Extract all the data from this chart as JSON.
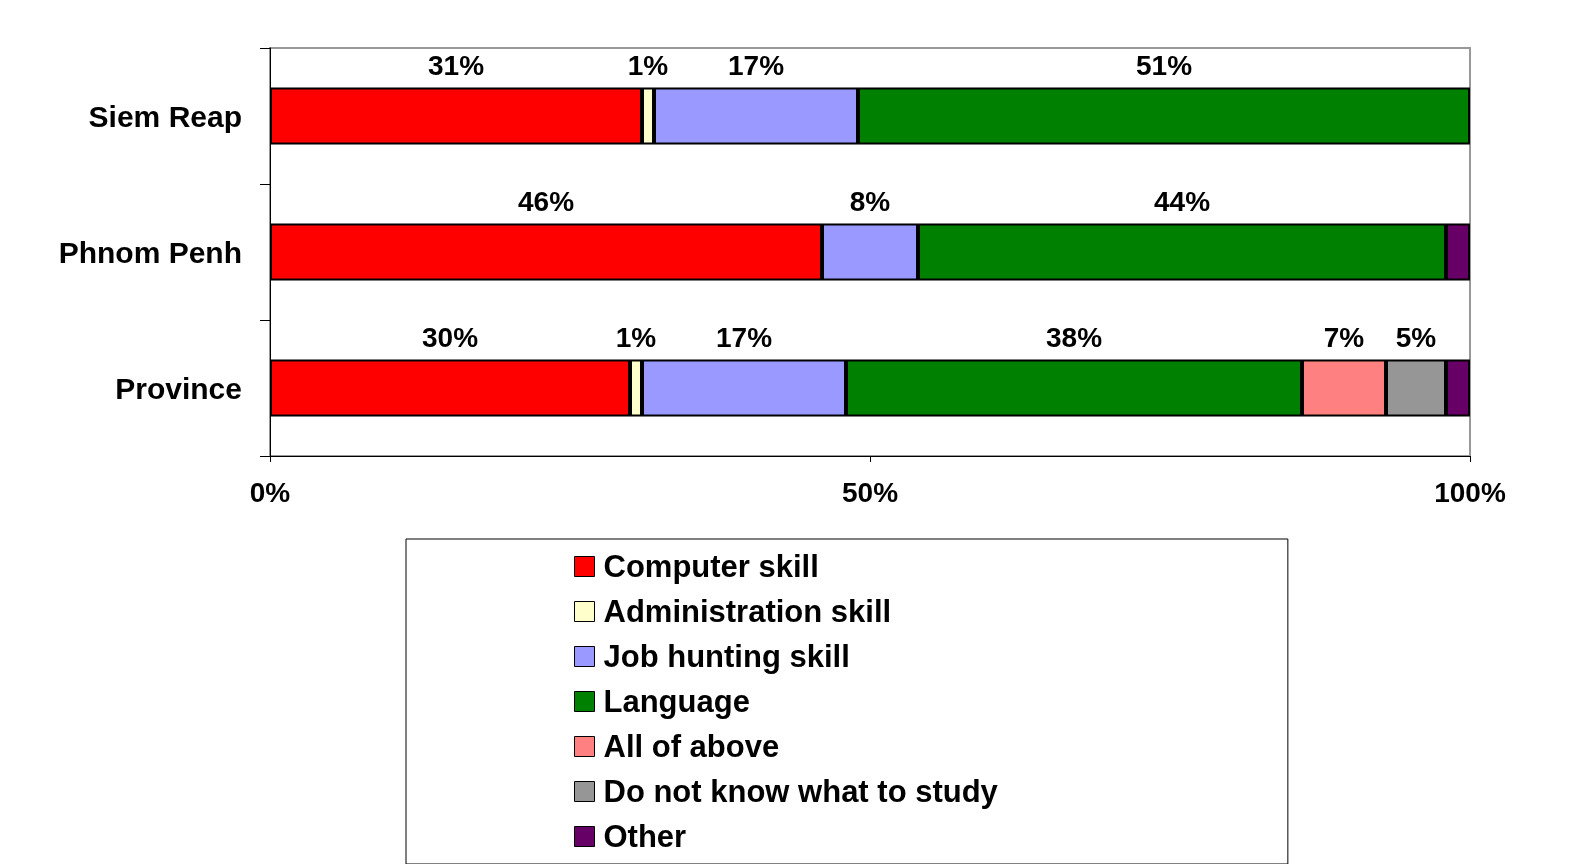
{
  "chart_data": {
    "type": "bar",
    "orientation": "horizontal",
    "stacked": true,
    "categories": [
      "Siem Reap",
      "Phnom Penh",
      "Province"
    ],
    "series": [
      {
        "name": "Computer skill",
        "color": "#ff0000",
        "values": [
          31,
          46,
          30
        ],
        "value_labels": [
          "31%",
          "46%",
          "30%"
        ]
      },
      {
        "name": "Administration skill",
        "color": "#ffffcc",
        "values": [
          1,
          null,
          1
        ],
        "value_labels": [
          "1%",
          null,
          "1%"
        ]
      },
      {
        "name": "Job hunting skill",
        "color": "#9999ff",
        "values": [
          17,
          8,
          17
        ],
        "value_labels": [
          "17%",
          "8%",
          "17%"
        ]
      },
      {
        "name": "Language",
        "color": "#008000",
        "values": [
          51,
          44,
          38
        ],
        "value_labels": [
          "51%",
          "44%",
          "38%"
        ]
      },
      {
        "name": "All of above",
        "color": "#ff8080",
        "values": [
          null,
          null,
          7
        ],
        "value_labels": [
          null,
          null,
          "7%"
        ]
      },
      {
        "name": "Do not know what to study",
        "color": "#969696",
        "values": [
          null,
          null,
          5
        ],
        "value_labels": [
          null,
          null,
          "5%"
        ]
      },
      {
        "name": "Other",
        "color": "#660066",
        "values": [
          null,
          2,
          2
        ],
        "value_labels": [
          null,
          null,
          null
        ]
      }
    ],
    "xlim": [
      0,
      100
    ],
    "xticks": [
      {
        "value": 0,
        "label": "0%"
      },
      {
        "value": 50,
        "label": "50%"
      },
      {
        "value": 100,
        "label": "100%"
      }
    ],
    "grid": false,
    "legend": "bottom"
  }
}
